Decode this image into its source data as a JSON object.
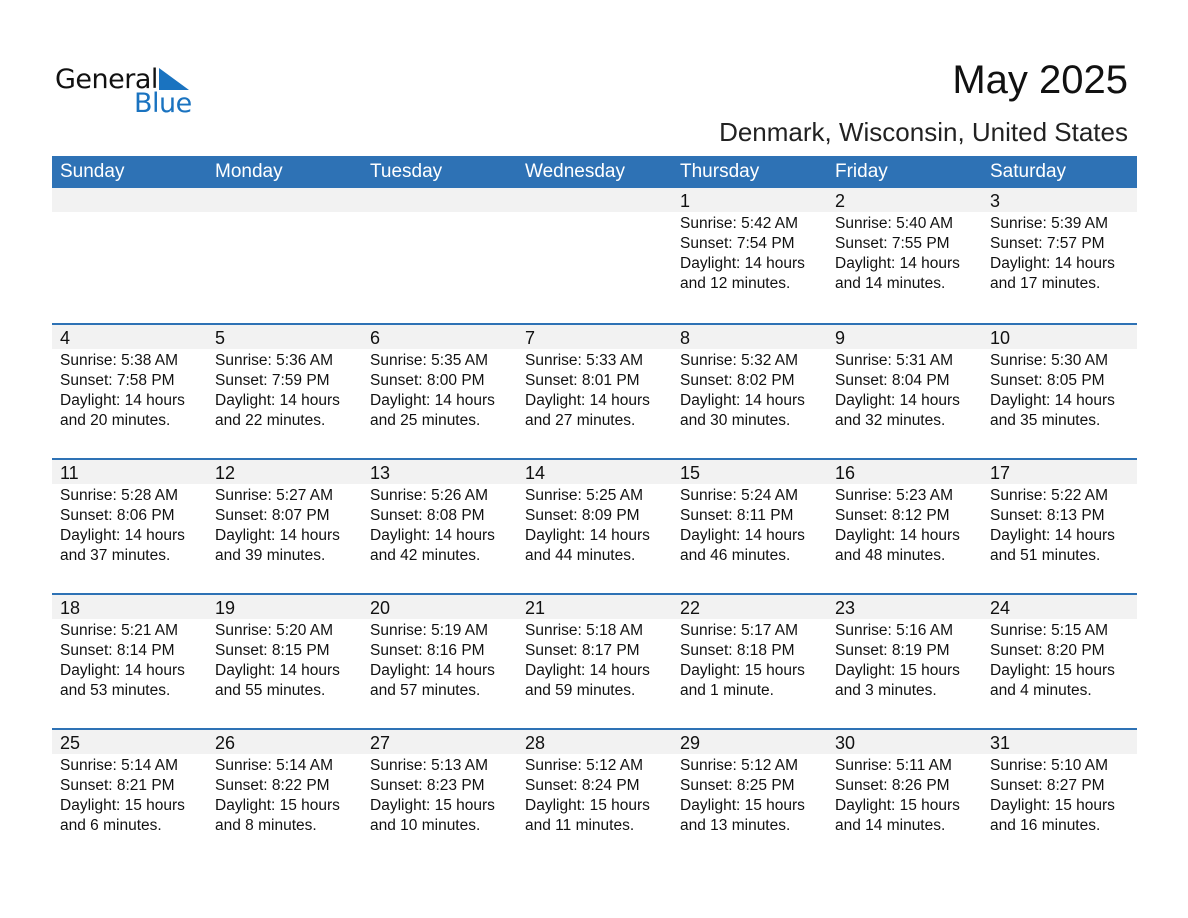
{
  "logo": {
    "text_general": "General",
    "text_blue": "Blue",
    "brand_color": "#1a73c0"
  },
  "header": {
    "title": "May 2025",
    "location": "Denmark, Wisconsin, United States"
  },
  "colors": {
    "header_bg": "#2e72b5",
    "day_row_bg": "#f2f2f2"
  },
  "weekdays": [
    "Sunday",
    "Monday",
    "Tuesday",
    "Wednesday",
    "Thursday",
    "Friday",
    "Saturday"
  ],
  "weeks": [
    [
      null,
      null,
      null,
      null,
      {
        "day": "1",
        "sunrise": "Sunrise: 5:42 AM",
        "sunset": "Sunset: 7:54 PM",
        "daylight": "Daylight: 14 hours",
        "minutes": "and 12 minutes."
      },
      {
        "day": "2",
        "sunrise": "Sunrise: 5:40 AM",
        "sunset": "Sunset: 7:55 PM",
        "daylight": "Daylight: 14 hours",
        "minutes": "and 14 minutes."
      },
      {
        "day": "3",
        "sunrise": "Sunrise: 5:39 AM",
        "sunset": "Sunset: 7:57 PM",
        "daylight": "Daylight: 14 hours",
        "minutes": "and 17 minutes."
      }
    ],
    [
      {
        "day": "4",
        "sunrise": "Sunrise: 5:38 AM",
        "sunset": "Sunset: 7:58 PM",
        "daylight": "Daylight: 14 hours",
        "minutes": "and 20 minutes."
      },
      {
        "day": "5",
        "sunrise": "Sunrise: 5:36 AM",
        "sunset": "Sunset: 7:59 PM",
        "daylight": "Daylight: 14 hours",
        "minutes": "and 22 minutes."
      },
      {
        "day": "6",
        "sunrise": "Sunrise: 5:35 AM",
        "sunset": "Sunset: 8:00 PM",
        "daylight": "Daylight: 14 hours",
        "minutes": "and 25 minutes."
      },
      {
        "day": "7",
        "sunrise": "Sunrise: 5:33 AM",
        "sunset": "Sunset: 8:01 PM",
        "daylight": "Daylight: 14 hours",
        "minutes": "and 27 minutes."
      },
      {
        "day": "8",
        "sunrise": "Sunrise: 5:32 AM",
        "sunset": "Sunset: 8:02 PM",
        "daylight": "Daylight: 14 hours",
        "minutes": "and 30 minutes."
      },
      {
        "day": "9",
        "sunrise": "Sunrise: 5:31 AM",
        "sunset": "Sunset: 8:04 PM",
        "daylight": "Daylight: 14 hours",
        "minutes": "and 32 minutes."
      },
      {
        "day": "10",
        "sunrise": "Sunrise: 5:30 AM",
        "sunset": "Sunset: 8:05 PM",
        "daylight": "Daylight: 14 hours",
        "minutes": "and 35 minutes."
      }
    ],
    [
      {
        "day": "11",
        "sunrise": "Sunrise: 5:28 AM",
        "sunset": "Sunset: 8:06 PM",
        "daylight": "Daylight: 14 hours",
        "minutes": "and 37 minutes."
      },
      {
        "day": "12",
        "sunrise": "Sunrise: 5:27 AM",
        "sunset": "Sunset: 8:07 PM",
        "daylight": "Daylight: 14 hours",
        "minutes": "and 39 minutes."
      },
      {
        "day": "13",
        "sunrise": "Sunrise: 5:26 AM",
        "sunset": "Sunset: 8:08 PM",
        "daylight": "Daylight: 14 hours",
        "minutes": "and 42 minutes."
      },
      {
        "day": "14",
        "sunrise": "Sunrise: 5:25 AM",
        "sunset": "Sunset: 8:09 PM",
        "daylight": "Daylight: 14 hours",
        "minutes": "and 44 minutes."
      },
      {
        "day": "15",
        "sunrise": "Sunrise: 5:24 AM",
        "sunset": "Sunset: 8:11 PM",
        "daylight": "Daylight: 14 hours",
        "minutes": "and 46 minutes."
      },
      {
        "day": "16",
        "sunrise": "Sunrise: 5:23 AM",
        "sunset": "Sunset: 8:12 PM",
        "daylight": "Daylight: 14 hours",
        "minutes": "and 48 minutes."
      },
      {
        "day": "17",
        "sunrise": "Sunrise: 5:22 AM",
        "sunset": "Sunset: 8:13 PM",
        "daylight": "Daylight: 14 hours",
        "minutes": "and 51 minutes."
      }
    ],
    [
      {
        "day": "18",
        "sunrise": "Sunrise: 5:21 AM",
        "sunset": "Sunset: 8:14 PM",
        "daylight": "Daylight: 14 hours",
        "minutes": "and 53 minutes."
      },
      {
        "day": "19",
        "sunrise": "Sunrise: 5:20 AM",
        "sunset": "Sunset: 8:15 PM",
        "daylight": "Daylight: 14 hours",
        "minutes": "and 55 minutes."
      },
      {
        "day": "20",
        "sunrise": "Sunrise: 5:19 AM",
        "sunset": "Sunset: 8:16 PM",
        "daylight": "Daylight: 14 hours",
        "minutes": "and 57 minutes."
      },
      {
        "day": "21",
        "sunrise": "Sunrise: 5:18 AM",
        "sunset": "Sunset: 8:17 PM",
        "daylight": "Daylight: 14 hours",
        "minutes": "and 59 minutes."
      },
      {
        "day": "22",
        "sunrise": "Sunrise: 5:17 AM",
        "sunset": "Sunset: 8:18 PM",
        "daylight": "Daylight: 15 hours",
        "minutes": "and 1 minute."
      },
      {
        "day": "23",
        "sunrise": "Sunrise: 5:16 AM",
        "sunset": "Sunset: 8:19 PM",
        "daylight": "Daylight: 15 hours",
        "minutes": "and 3 minutes."
      },
      {
        "day": "24",
        "sunrise": "Sunrise: 5:15 AM",
        "sunset": "Sunset: 8:20 PM",
        "daylight": "Daylight: 15 hours",
        "minutes": "and 4 minutes."
      }
    ],
    [
      {
        "day": "25",
        "sunrise": "Sunrise: 5:14 AM",
        "sunset": "Sunset: 8:21 PM",
        "daylight": "Daylight: 15 hours",
        "minutes": "and 6 minutes."
      },
      {
        "day": "26",
        "sunrise": "Sunrise: 5:14 AM",
        "sunset": "Sunset: 8:22 PM",
        "daylight": "Daylight: 15 hours",
        "minutes": "and 8 minutes."
      },
      {
        "day": "27",
        "sunrise": "Sunrise: 5:13 AM",
        "sunset": "Sunset: 8:23 PM",
        "daylight": "Daylight: 15 hours",
        "minutes": "and 10 minutes."
      },
      {
        "day": "28",
        "sunrise": "Sunrise: 5:12 AM",
        "sunset": "Sunset: 8:24 PM",
        "daylight": "Daylight: 15 hours",
        "minutes": "and 11 minutes."
      },
      {
        "day": "29",
        "sunrise": "Sunrise: 5:12 AM",
        "sunset": "Sunset: 8:25 PM",
        "daylight": "Daylight: 15 hours",
        "minutes": "and 13 minutes."
      },
      {
        "day": "30",
        "sunrise": "Sunrise: 5:11 AM",
        "sunset": "Sunset: 8:26 PM",
        "daylight": "Daylight: 15 hours",
        "minutes": "and 14 minutes."
      },
      {
        "day": "31",
        "sunrise": "Sunrise: 5:10 AM",
        "sunset": "Sunset: 8:27 PM",
        "daylight": "Daylight: 15 hours",
        "minutes": "and 16 minutes."
      }
    ]
  ]
}
